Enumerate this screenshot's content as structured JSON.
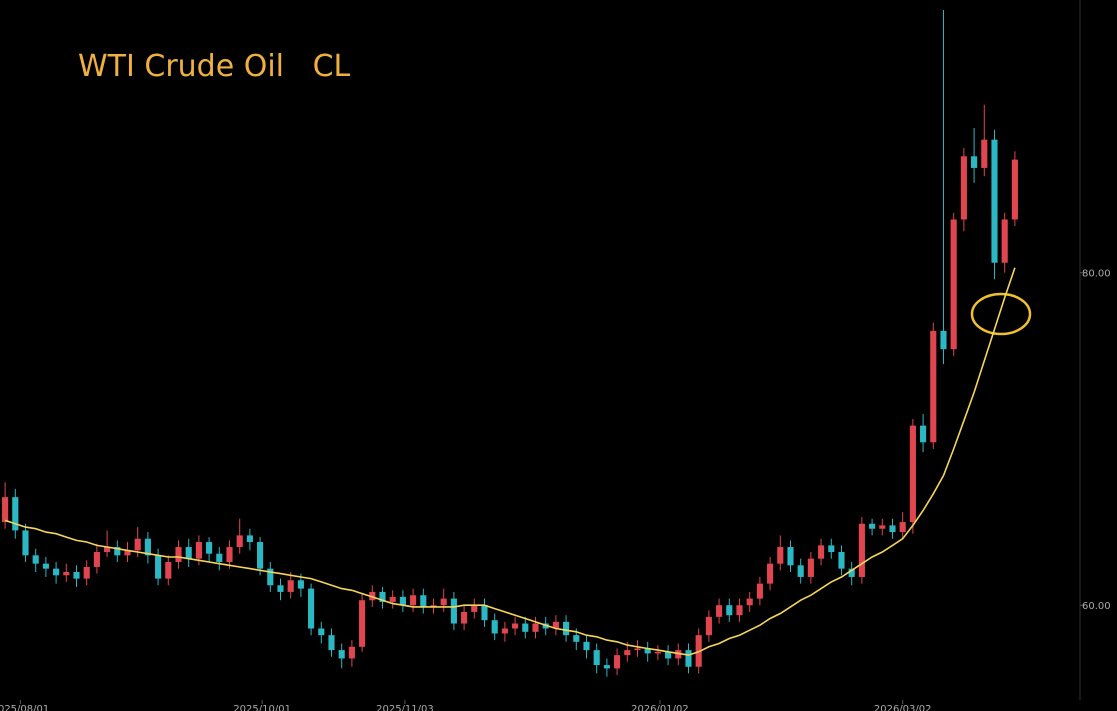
{
  "chart_data": {
    "type": "candlestick",
    "title": "WTI Crude Oil   CL",
    "up_color": "#e0464f",
    "down_color": "#2bb8c4",
    "ma_color": "#f5d65a",
    "open": [
      65.0,
      66.5,
      64.5,
      63.0,
      62.5,
      62.2,
      61.8,
      62.0,
      61.6,
      62.3,
      63.2,
      63.5,
      63.0,
      63.3,
      64.0,
      63.0,
      61.6,
      62.6,
      63.5,
      62.8,
      63.8,
      63.1,
      62.6,
      63.5,
      64.2,
      63.8,
      62.2,
      61.2,
      60.8,
      61.5,
      61.0,
      58.6,
      58.2,
      57.3,
      56.8,
      57.5,
      60.3,
      60.8,
      60.2,
      60.5,
      60.0,
      60.6,
      59.9,
      60.0,
      60.4,
      58.9,
      59.6,
      60.0,
      59.1,
      58.3,
      58.6,
      58.9,
      58.4,
      58.9,
      58.6,
      59.0,
      58.2,
      57.8,
      57.3,
      56.4,
      56.2,
      57.0,
      57.3,
      57.4,
      57.1,
      57.2,
      56.8,
      57.3,
      56.3,
      58.2,
      59.3,
      60.0,
      59.4,
      60.0,
      60.4,
      61.3,
      62.5,
      63.5,
      62.4,
      61.7,
      62.8,
      63.6,
      63.2,
      62.2,
      61.7,
      64.9,
      64.6,
      64.8,
      64.4,
      65.0,
      70.8,
      69.8,
      76.5,
      75.4,
      83.2,
      87.0,
      86.3,
      88.0,
      80.6,
      83.2
    ],
    "high": [
      67.4,
      67.0,
      64.9,
      63.4,
      62.9,
      62.6,
      62.5,
      62.4,
      62.7,
      63.7,
      64.5,
      63.9,
      63.8,
      64.7,
      64.4,
      63.4,
      63.0,
      63.9,
      64.0,
      64.2,
      64.1,
      63.5,
      63.9,
      65.2,
      64.6,
      64.1,
      62.6,
      61.6,
      62.0,
      61.9,
      61.3,
      59.0,
      58.6,
      57.7,
      57.9,
      60.7,
      61.2,
      61.1,
      60.9,
      60.9,
      61.0,
      61.0,
      60.4,
      61.0,
      60.8,
      60.0,
      60.4,
      60.4,
      59.5,
      59.0,
      59.3,
      59.3,
      59.3,
      59.3,
      59.4,
      59.4,
      58.6,
      58.2,
      57.7,
      56.8,
      57.4,
      57.8,
      57.9,
      57.8,
      57.6,
      57.6,
      57.7,
      57.7,
      58.6,
      59.7,
      60.4,
      60.4,
      60.4,
      60.8,
      61.7,
      62.9,
      64.2,
      63.9,
      62.8,
      63.2,
      64.0,
      64.0,
      63.6,
      62.6,
      65.3,
      65.2,
      65.2,
      65.2,
      65.6,
      71.2,
      71.5,
      77.0,
      95.8,
      83.6,
      87.5,
      88.7,
      90.1,
      88.6,
      83.6,
      87.3
    ],
    "low": [
      64.6,
      64.0,
      62.6,
      62.0,
      61.7,
      61.3,
      61.4,
      61.1,
      61.2,
      61.9,
      62.9,
      62.6,
      62.6,
      62.9,
      62.5,
      61.2,
      61.2,
      62.2,
      62.3,
      62.4,
      62.6,
      62.1,
      62.2,
      63.1,
      63.3,
      61.8,
      60.8,
      60.3,
      60.4,
      60.5,
      58.2,
      57.7,
      56.9,
      56.2,
      56.3,
      57.2,
      59.9,
      59.8,
      59.8,
      59.6,
      59.6,
      59.5,
      59.5,
      59.6,
      58.5,
      58.5,
      59.2,
      58.7,
      57.9,
      57.8,
      58.2,
      58.0,
      58.0,
      58.2,
      58.2,
      57.8,
      57.3,
      56.8,
      55.9,
      55.7,
      55.8,
      56.6,
      56.9,
      56.6,
      56.7,
      56.4,
      56.4,
      55.9,
      55.9,
      57.8,
      58.9,
      59.0,
      59.0,
      59.6,
      60.0,
      60.9,
      62.1,
      62.0,
      61.3,
      61.3,
      62.4,
      62.8,
      61.8,
      61.2,
      61.3,
      64.2,
      64.2,
      64.0,
      64.0,
      64.3,
      69.2,
      69.4,
      74.5,
      75.0,
      82.5,
      85.4,
      85.8,
      79.6,
      80.0,
      82.8
    ],
    "close": [
      66.5,
      64.5,
      63.0,
      62.5,
      62.2,
      61.8,
      62.0,
      61.6,
      62.3,
      63.2,
      63.5,
      63.0,
      63.3,
      64.0,
      63.0,
      61.6,
      62.6,
      63.5,
      62.8,
      63.8,
      63.1,
      62.6,
      63.5,
      64.2,
      63.8,
      62.2,
      61.2,
      60.8,
      61.5,
      61.0,
      58.6,
      58.2,
      57.3,
      56.8,
      57.5,
      60.3,
      60.8,
      60.2,
      60.5,
      60.0,
      60.6,
      59.9,
      60.0,
      60.4,
      58.9,
      59.6,
      60.0,
      59.1,
      58.3,
      58.6,
      58.9,
      58.4,
      58.9,
      58.6,
      59.0,
      58.2,
      57.8,
      57.3,
      56.4,
      56.2,
      57.0,
      57.3,
      57.4,
      57.1,
      57.2,
      56.8,
      57.3,
      56.3,
      58.2,
      59.3,
      60.0,
      59.4,
      60.0,
      60.4,
      61.3,
      62.5,
      63.5,
      62.4,
      61.7,
      62.8,
      63.6,
      63.2,
      62.2,
      61.7,
      64.9,
      64.6,
      64.8,
      64.4,
      65.0,
      70.8,
      69.8,
      76.5,
      75.4,
      83.2,
      87.0,
      86.3,
      88.0,
      80.6,
      83.2,
      86.8
    ],
    "ma": [
      65.1,
      64.9,
      64.7,
      64.6,
      64.4,
      64.3,
      64.1,
      63.9,
      63.8,
      63.6,
      63.5,
      63.4,
      63.3,
      63.2,
      63.1,
      63.0,
      62.9,
      62.9,
      62.8,
      62.7,
      62.6,
      62.5,
      62.4,
      62.3,
      62.2,
      62.1,
      62.0,
      61.9,
      61.8,
      61.7,
      61.6,
      61.4,
      61.2,
      61.0,
      60.9,
      60.7,
      60.5,
      60.3,
      60.1,
      60.0,
      59.9,
      59.9,
      59.9,
      59.9,
      59.9,
      60.0,
      60.0,
      60.0,
      59.8,
      59.6,
      59.4,
      59.2,
      59.0,
      58.8,
      58.6,
      58.5,
      58.4,
      58.2,
      58.1,
      57.9,
      57.8,
      57.6,
      57.5,
      57.4,
      57.3,
      57.2,
      57.1,
      57.0,
      57.2,
      57.5,
      57.7,
      58.0,
      58.2,
      58.5,
      58.8,
      59.2,
      59.5,
      59.9,
      60.3,
      60.6,
      61.0,
      61.4,
      61.7,
      62.1,
      62.5,
      62.9,
      63.2,
      63.6,
      64.0,
      64.8,
      65.7,
      66.7,
      67.8,
      69.4,
      71.1,
      72.8,
      74.7,
      76.6,
      78.5,
      80.3
    ],
    "xlim": [
      -0.5,
      104.6
    ],
    "xticks": [
      {
        "value": 1.5,
        "label": "2025/08/01"
      },
      {
        "value": 25.2,
        "label": "2025/10/01"
      },
      {
        "value": 39.2,
        "label": "2025/11/03"
      },
      {
        "value": 64.2,
        "label": "2026/01/02"
      },
      {
        "value": 88.0,
        "label": "2026/03/02"
      }
    ],
    "ylim": [
      54.3,
      96.4
    ],
    "yticks": [
      {
        "value": 80,
        "label": "80.00"
      },
      {
        "value": 60,
        "label": "60.00"
      }
    ]
  }
}
